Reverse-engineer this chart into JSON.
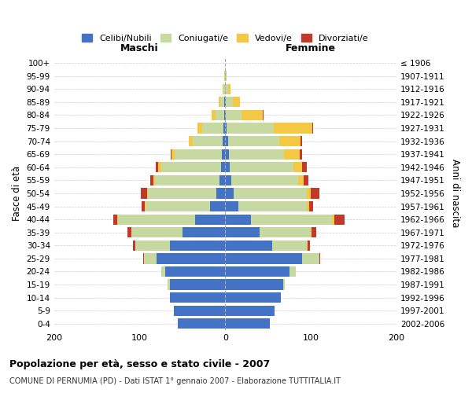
{
  "age_groups": [
    "0-4",
    "5-9",
    "10-14",
    "15-19",
    "20-24",
    "25-29",
    "30-34",
    "35-39",
    "40-44",
    "45-49",
    "50-54",
    "55-59",
    "60-64",
    "65-69",
    "70-74",
    "75-79",
    "80-84",
    "85-89",
    "90-94",
    "95-99",
    "100+"
  ],
  "birth_years": [
    "2002-2006",
    "1997-2001",
    "1992-1996",
    "1987-1991",
    "1982-1986",
    "1977-1981",
    "1972-1976",
    "1967-1971",
    "1962-1966",
    "1957-1961",
    "1952-1956",
    "1947-1951",
    "1942-1946",
    "1937-1941",
    "1932-1936",
    "1927-1931",
    "1922-1926",
    "1917-1921",
    "1912-1916",
    "1907-1911",
    "≤ 1906"
  ],
  "maschi": {
    "celibi": [
      55,
      60,
      65,
      65,
      70,
      80,
      65,
      50,
      35,
      18,
      10,
      7,
      5,
      4,
      3,
      2,
      1,
      1,
      0,
      0,
      0
    ],
    "coniugati": [
      0,
      0,
      0,
      2,
      5,
      15,
      40,
      60,
      90,
      75,
      80,
      75,
      70,
      55,
      35,
      25,
      10,
      5,
      2,
      1,
      0
    ],
    "vedovi": [
      0,
      0,
      0,
      0,
      0,
      0,
      0,
      0,
      1,
      1,
      1,
      2,
      3,
      4,
      5,
      5,
      5,
      2,
      1,
      0,
      0
    ],
    "divorziati": [
      0,
      0,
      0,
      0,
      0,
      1,
      3,
      4,
      5,
      4,
      8,
      4,
      3,
      1,
      0,
      0,
      0,
      0,
      0,
      0,
      0
    ]
  },
  "femmine": {
    "nubili": [
      52,
      58,
      65,
      68,
      75,
      90,
      55,
      40,
      30,
      15,
      10,
      7,
      5,
      4,
      3,
      2,
      1,
      1,
      0,
      0,
      0
    ],
    "coniugate": [
      0,
      0,
      0,
      2,
      7,
      20,
      40,
      60,
      95,
      80,
      85,
      78,
      75,
      65,
      60,
      55,
      18,
      8,
      3,
      1,
      0
    ],
    "vedove": [
      0,
      0,
      0,
      0,
      0,
      0,
      1,
      1,
      2,
      3,
      5,
      7,
      10,
      18,
      25,
      45,
      25,
      8,
      3,
      1,
      0
    ],
    "divorziate": [
      0,
      0,
      0,
      0,
      0,
      1,
      3,
      5,
      12,
      5,
      10,
      5,
      5,
      3,
      2,
      1,
      1,
      0,
      0,
      0,
      0
    ]
  },
  "colors": {
    "celibi": "#4472c4",
    "coniugati": "#c5d9a0",
    "vedovi": "#f4c842",
    "divorziati": "#c0392b"
  },
  "legend_labels": [
    "Celibi/Nubili",
    "Coniugati/e",
    "Vedovi/e",
    "Divorziati/e"
  ],
  "title": "Popolazione per età, sesso e stato civile - 2007",
  "subtitle": "COMUNE DI PERNUMIA (PD) - Dati ISTAT 1° gennaio 2007 - Elaborazione TUTTITALIA.IT",
  "xlabel_maschi": "Maschi",
  "xlabel_femmine": "Femmine",
  "ylabel": "Fasce di età",
  "ylabel_right": "Anni di nascita",
  "xlim": 200,
  "bg_color": "#ffffff",
  "grid_color": "#cccccc"
}
